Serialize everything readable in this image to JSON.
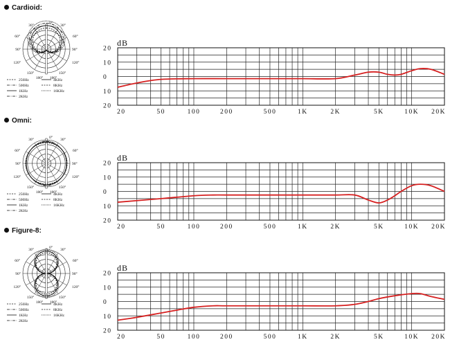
{
  "sections": [
    {
      "title": "Cardioid",
      "title_suffix": ":",
      "polar": {
        "angles": {
          "a0": "0°",
          "a30l": "30°",
          "a30r": "30°",
          "a60l": "60°",
          "a60r": "60°",
          "a90l": "90°",
          "a90r": "90°",
          "a120l": "120°",
          "a120r": "120°",
          "a150l": "150°",
          "a150r": "150°",
          "a180l": "180°",
          "a180r": "180°"
        },
        "legend": [
          "250Hz",
          "4KHz",
          "500Hz",
          "8KHz",
          "1KHz",
          "16KHz",
          "2KHz"
        ]
      }
    },
    {
      "title": "Omni",
      "title_suffix": ":",
      "polar": {
        "angles": {
          "a0": "0°",
          "a30l": "30°",
          "a30r": "30°",
          "a60l": "60°",
          "a60r": "60°",
          "a90l": "90°",
          "a90r": "90°",
          "a120l": "120°",
          "a120r": "120°",
          "a150l": "150°",
          "a150r": "150°",
          "a180l": "180°",
          "a180r": "180°"
        },
        "legend": [
          "250Hz",
          "4KHz",
          "500Hz",
          "8KHz",
          "1KHz",
          "16KHz",
          "2KHz"
        ]
      }
    },
    {
      "title": "Figure-8",
      "title_suffix": ":",
      "polar": {
        "angles": {
          "a0": "0°",
          "a30l": "30°",
          "a30r": "30°",
          "a60l": "60°",
          "a60r": "60°",
          "a90l": "90°",
          "a90r": "90°",
          "a120l": "120°",
          "a120r": "120°",
          "a150l": "150°",
          "a150r": "150°",
          "a180l": "180°",
          "a180r": "180°"
        },
        "legend": [
          "250Hz",
          "4KHz",
          "500Hz",
          "8KHz",
          "1KHz",
          "16KHz",
          "2KHz"
        ]
      }
    }
  ],
  "chart_data": [
    {
      "type": "line",
      "pattern": "Cardioid",
      "ylabel": "dB",
      "xscale": "log",
      "xlim": [
        20,
        20000
      ],
      "ylim": [
        -20,
        20
      ],
      "xticks": [
        20,
        50,
        100,
        200,
        500,
        1000,
        2000,
        5000,
        10000,
        20000
      ],
      "xtick_labels": [
        "20",
        "50",
        "100",
        "200",
        "500",
        "1K",
        "2K",
        "5K",
        "10K",
        "20K"
      ],
      "yticks": [
        20,
        10,
        0,
        -10,
        -20
      ],
      "ytick_labels": [
        "20",
        "10",
        "0",
        "10",
        "20"
      ],
      "grid": true,
      "line_color": "#d62020",
      "x": [
        20,
        30,
        50,
        100,
        200,
        500,
        1000,
        2000,
        3000,
        4000,
        5000,
        6000,
        7000,
        8000,
        10000,
        12000,
        15000,
        20000
      ],
      "y": [
        -7.5,
        -4.5,
        -2,
        -1.5,
        -1.5,
        -1.5,
        -1.5,
        -1.5,
        1,
        3,
        3,
        1.5,
        1,
        1.5,
        4,
        5.5,
        5,
        1.5
      ]
    },
    {
      "type": "line",
      "pattern": "Omni",
      "ylabel": "dB",
      "xscale": "log",
      "xlim": [
        20,
        20000
      ],
      "ylim": [
        -20,
        20
      ],
      "xticks": [
        20,
        50,
        100,
        200,
        500,
        1000,
        2000,
        5000,
        10000,
        20000
      ],
      "xtick_labels": [
        "20",
        "50",
        "100",
        "200",
        "500",
        "1K",
        "2K",
        "5K",
        "10K",
        "20K"
      ],
      "yticks": [
        20,
        10,
        0,
        -10,
        -20
      ],
      "ytick_labels": [
        "20",
        "10",
        "0",
        "10",
        "20"
      ],
      "grid": true,
      "line_color": "#d62020",
      "x": [
        20,
        50,
        100,
        150,
        200,
        500,
        1000,
        2000,
        3000,
        4000,
        5000,
        6000,
        7000,
        8000,
        10000,
        12000,
        15000,
        20000
      ],
      "y": [
        -7.5,
        -5,
        -3,
        -2.5,
        -2.5,
        -2.5,
        -2.5,
        -2.5,
        -2.5,
        -6,
        -8,
        -6,
        -3,
        0,
        4,
        5,
        4,
        0
      ]
    },
    {
      "type": "line",
      "pattern": "Figure-8",
      "ylabel": "dB",
      "xscale": "log",
      "xlim": [
        20,
        20000
      ],
      "ylim": [
        -20,
        20
      ],
      "xticks": [
        20,
        50,
        100,
        200,
        500,
        1000,
        2000,
        5000,
        10000,
        20000
      ],
      "xtick_labels": [
        "20",
        "50",
        "100",
        "200",
        "500",
        "1K",
        "2K",
        "5K",
        "10K",
        "20K"
      ],
      "yticks": [
        20,
        10,
        0,
        -10,
        -20
      ],
      "ytick_labels": [
        "20",
        "10",
        "0",
        "10",
        "20"
      ],
      "grid": true,
      "line_color": "#d62020",
      "x": [
        20,
        30,
        50,
        70,
        100,
        150,
        200,
        500,
        1000,
        2000,
        3000,
        4000,
        5000,
        7000,
        10000,
        12000,
        15000,
        20000
      ],
      "y": [
        -13,
        -11,
        -8,
        -6,
        -4,
        -3,
        -3,
        -3,
        -3,
        -3,
        -2,
        0,
        2,
        4,
        5.5,
        5.5,
        3.5,
        1.5
      ]
    }
  ]
}
